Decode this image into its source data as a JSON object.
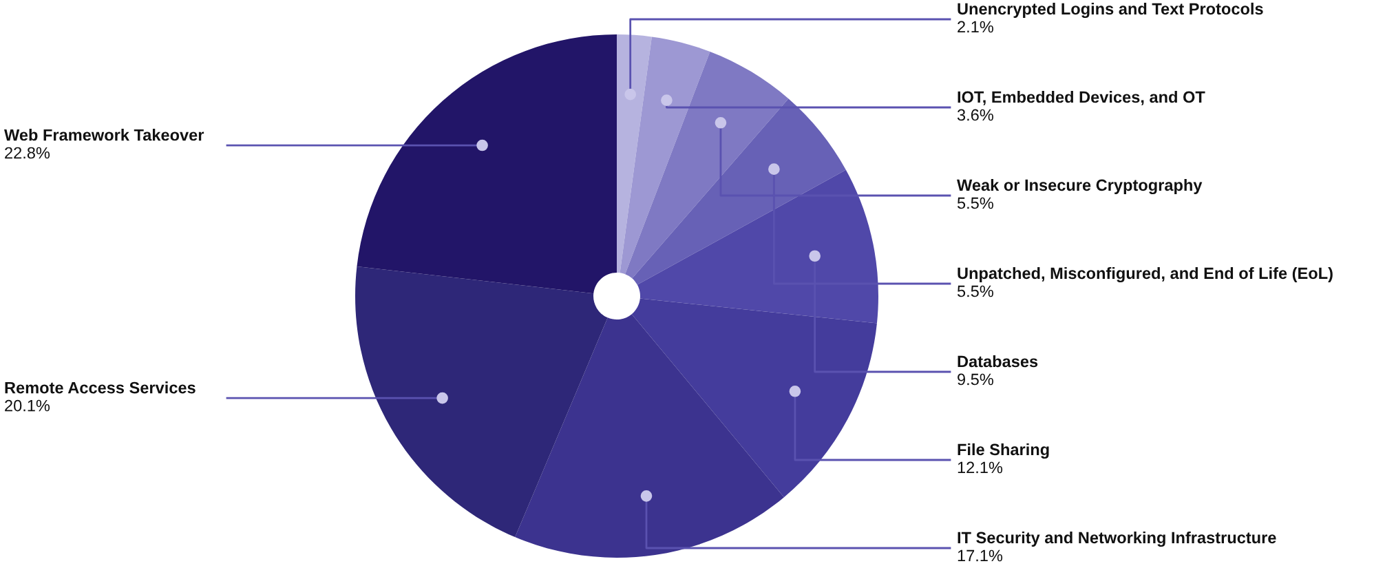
{
  "chart_data": {
    "type": "pie",
    "categories": [
      "Unencrypted Logins and Text Protocols",
      "IOT, Embedded Devices, and OT",
      "Weak or Insecure Cryptography",
      "Unpatched, Misconfigured, and End of Life (EoL)",
      "Databases",
      "File Sharing",
      "IT Security and Networking Infrastructure",
      "Remote Access Services",
      "Web Framework Takeover"
    ],
    "values": [
      2.1,
      3.6,
      5.5,
      5.5,
      9.5,
      12.1,
      17.1,
      20.1,
      22.8
    ],
    "value_labels": [
      "2.1%",
      "3.6%",
      "5.5%",
      "5.5%",
      "9.5%",
      "12.1%",
      "17.1%",
      "20.1%",
      "22.8%"
    ],
    "colors": [
      "#b6b3df",
      "#9d98d3",
      "#7f79c3",
      "#6761b6",
      "#5048a9",
      "#443c9c",
      "#3c338f",
      "#2e2778",
      "#221568"
    ]
  }
}
